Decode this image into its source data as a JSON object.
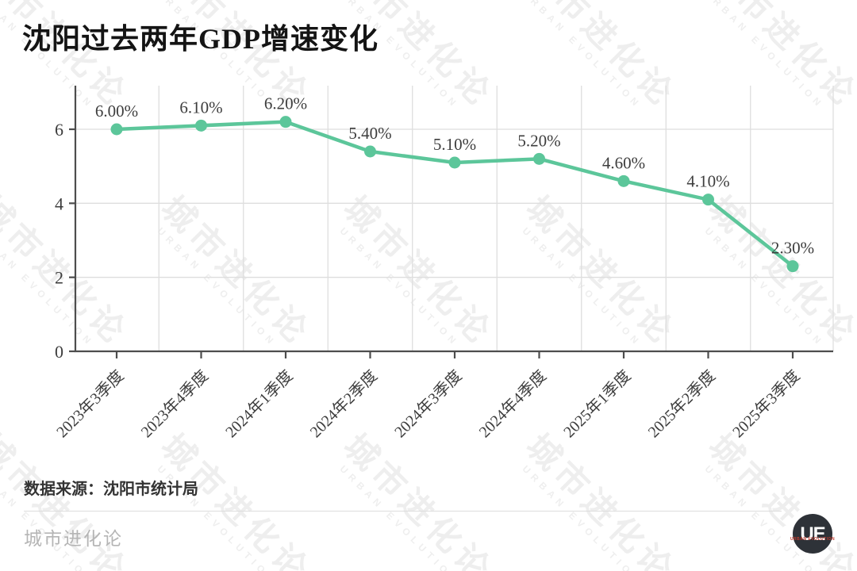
{
  "page": {
    "title": "沈阳过去两年GDP增速变化"
  },
  "source_note": "数据来源：沈阳市统计局",
  "footer": {
    "brand": "城市进化论",
    "logo_text": "UE",
    "logo_subtext": "URBAN EVOLUTION"
  },
  "watermark": {
    "line1": "城市进化论",
    "line2": "URBAN EVOLUTION"
  },
  "colors": {
    "line": "#5cc69a",
    "axis": "#4d4d4d",
    "grid": "#dedede",
    "tick_text": "#3d3d3d",
    "title_text": "#141414",
    "logo_bg": "#2e3238",
    "logo_accent": "#c23b2e",
    "footer_text": "#b5b5b5"
  },
  "chart_data": {
    "type": "line",
    "title": "沈阳过去两年GDP增速变化",
    "categories": [
      "2023年3季度",
      "2023年4季度",
      "2024年1季度",
      "2024年2季度",
      "2024年3季度",
      "2024年4季度",
      "2025年1季度",
      "2025年2季度",
      "2025年3季度"
    ],
    "values": [
      6.0,
      6.1,
      6.2,
      5.4,
      5.1,
      5.2,
      4.6,
      4.1,
      2.3
    ],
    "point_labels": [
      "6.00%",
      "6.10%",
      "6.20%",
      "5.40%",
      "5.10%",
      "5.20%",
      "4.60%",
      "4.10%",
      "2.30%"
    ],
    "xlabel": "",
    "ylabel": "",
    "yticks": [
      0,
      2,
      4,
      6
    ],
    "ylim": [
      0,
      7.2
    ],
    "grid": true,
    "legend": "none",
    "source": "数据来源：沈阳市统计局"
  }
}
